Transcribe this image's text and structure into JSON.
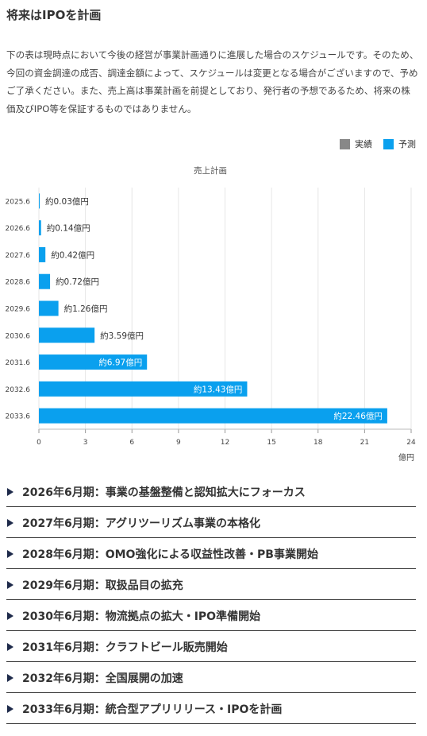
{
  "section": {
    "title": "将来はIPOを計画",
    "intro": "下の表は現時点において今後の経営が事業計画通りに進展した場合のスケジュールです。そのため、今回の資金調達の成否、調達金額によって、スケジュールは変更となる場合がございますので、予めご了承ください。また、売上高は事業計画を前提としており、発行者の予想であるため、将来の株価及びIPO等を保証するものではありません。"
  },
  "legend": {
    "items": [
      {
        "label": "実績",
        "color": "#888888"
      },
      {
        "label": "予測",
        "color": "#0aa0ee"
      }
    ]
  },
  "chart_data": {
    "type": "bar",
    "orientation": "horizontal",
    "title": "売上計画",
    "unit": "億円",
    "categories": [
      "2025.6",
      "2026.6",
      "2027.6",
      "2028.6",
      "2029.6",
      "2030.6",
      "2031.6",
      "2032.6",
      "2033.6"
    ],
    "series": [
      {
        "name": "予測",
        "values": [
          0.03,
          0.14,
          0.42,
          0.72,
          1.26,
          3.59,
          6.97,
          13.43,
          22.46
        ]
      }
    ],
    "data_labels": [
      "約0.03億円",
      "約0.14億円",
      "約0.42億円",
      "約0.72億円",
      "約1.26億円",
      "約3.59億円",
      "約6.97億円",
      "約13.43億円",
      "約22.46億円"
    ],
    "xlim": [
      0,
      24
    ],
    "xticks": [
      0,
      3,
      6,
      9,
      12,
      15,
      18,
      21,
      24
    ],
    "grid": true,
    "legend_position": "top-right",
    "bar_color": "#0aa0ee"
  },
  "milestones": [
    {
      "label": "2026年6月期：事業の基盤整備と認知拡大にフォーカス"
    },
    {
      "label": "2027年6月期：アグリツーリズム事業の本格化"
    },
    {
      "label": "2028年6月期：OMO強化による収益性改善・PB事業開始"
    },
    {
      "label": "2029年6月期：取扱品目の拡充"
    },
    {
      "label": "2030年6月期：物流拠点の拡大・IPO準備開始"
    },
    {
      "label": "2031年6月期：クラフトビール販売開始"
    },
    {
      "label": "2032年6月期：全国展開の加速"
    },
    {
      "label": "2033年6月期：統合型アプリリリース・IPOを計画"
    }
  ]
}
